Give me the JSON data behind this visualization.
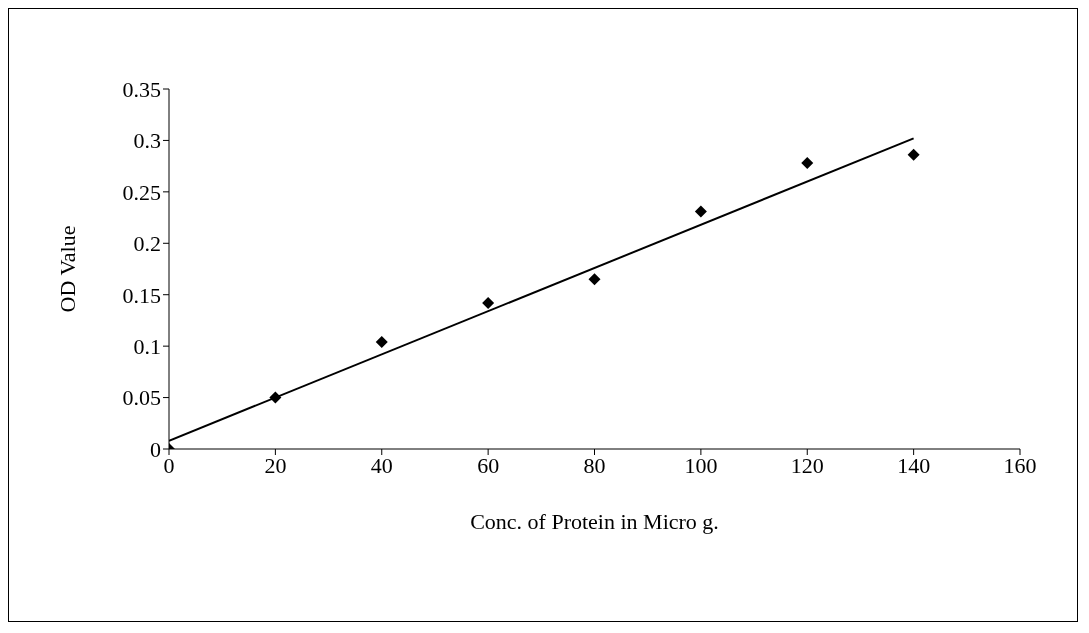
{
  "chart_data": {
    "type": "scatter",
    "xlabel": "Conc. of Protein in Micro g.",
    "ylabel": "OD Value",
    "xlim": [
      0,
      160
    ],
    "xticks": [
      0,
      20,
      40,
      60,
      80,
      100,
      120,
      140,
      160
    ],
    "ylim": [
      0,
      0.35
    ],
    "yticks": [
      0,
      0.05,
      0.1,
      0.15,
      0.2,
      0.25,
      0.3,
      0.35
    ],
    "grid": false,
    "legend": false,
    "marker": "diamond",
    "series": [
      {
        "type": "scatter",
        "color": "#000000",
        "x": [
          0,
          20,
          40,
          60,
          80,
          100,
          120,
          140
        ],
        "values": [
          0,
          0.05,
          0.104,
          0.142,
          0.165,
          0.231,
          0.278,
          0.286
        ]
      },
      {
        "type": "line",
        "color": "#000000",
        "marker": "none",
        "line_style": "solid",
        "x": [
          0,
          140
        ],
        "values": [
          0.008,
          0.302
        ]
      }
    ]
  }
}
